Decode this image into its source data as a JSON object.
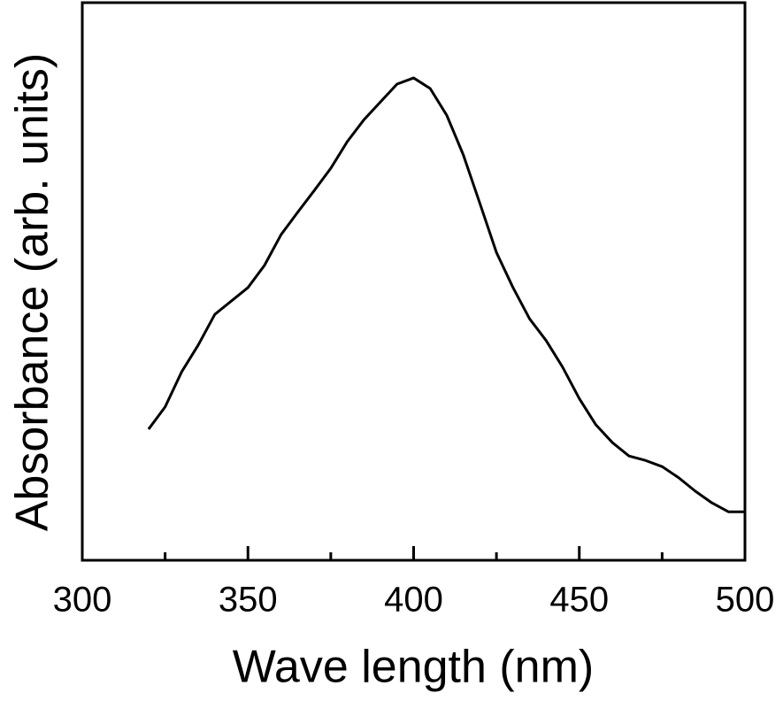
{
  "chart_data": {
    "type": "line",
    "xlabel": "Wave length (nm)",
    "ylabel": "Absorbance (arb. units)",
    "x": [
      320,
      325,
      330,
      335,
      340,
      345,
      350,
      355,
      360,
      365,
      370,
      375,
      380,
      385,
      390,
      395,
      400,
      405,
      410,
      415,
      420,
      425,
      430,
      435,
      440,
      445,
      450,
      455,
      460,
      465,
      470,
      475,
      480,
      485,
      490,
      495,
      500
    ],
    "series": [
      {
        "color": "#000000",
        "values": [
          0.235,
          0.275,
          0.338,
          0.386,
          0.441,
          0.465,
          0.489,
          0.529,
          0.584,
          0.624,
          0.663,
          0.703,
          0.751,
          0.79,
          0.822,
          0.854,
          0.865,
          0.846,
          0.798,
          0.727,
          0.64,
          0.552,
          0.489,
          0.433,
          0.394,
          0.346,
          0.29,
          0.243,
          0.211,
          0.187,
          0.179,
          0.168,
          0.148,
          0.124,
          0.103,
          0.087,
          0.087
        ]
      }
    ],
    "xlim": [
      300,
      500
    ],
    "xticks": [
      300,
      350,
      400,
      450,
      500
    ],
    "xminorticks": [
      325,
      375,
      425,
      475
    ],
    "ylim": [
      0,
      1
    ]
  }
}
